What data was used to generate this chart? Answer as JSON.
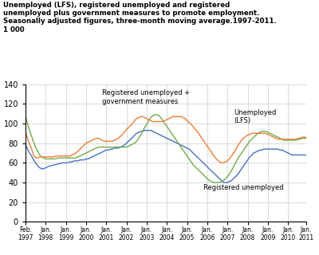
{
  "title_line1": "Unemployed (LFS), registered unemployed and registered",
  "title_line2": "unemployed plus government measures to promote employment.",
  "title_line3": "Seasonally adjusted figures, three-month moving average.1997-2011.",
  "title_line4": "1 000",
  "ylim": [
    0,
    140
  ],
  "yticks": [
    0,
    20,
    40,
    60,
    80,
    100,
    120,
    140
  ],
  "xtick_labels_top": [
    "Feb.",
    "Jan.",
    "Jan.",
    "Jan.",
    "Jan.",
    "Jan.",
    "Jan.",
    "Jan.",
    "Jan.",
    "Jan.",
    "Jan.",
    "Jan.",
    "Jan.",
    "Jan.",
    "Jan."
  ],
  "xtick_labels_bot": [
    "1997",
    "1998",
    "1999",
    "2000",
    "2001",
    "2002",
    "2003",
    "2004",
    "2005",
    "2006",
    "2007",
    "2008",
    "2009",
    "2010",
    "2011"
  ],
  "line_lfs_color": "#4472c4",
  "line_reg_color": "#70ad47",
  "line_gov_color": "#ed7d31",
  "label_lfs": "Unemployed\n(LFS)",
  "label_reg": "Registered unemployed",
  "label_gov": "Registered unemployed +\ngovernment measures",
  "lfs": [
    79,
    74,
    70,
    67,
    63,
    60,
    57,
    55,
    54,
    54,
    55,
    56,
    57,
    57,
    58,
    58,
    59,
    59,
    60,
    60,
    60,
    60,
    61,
    61,
    62,
    62,
    62,
    63,
    63,
    63,
    64,
    64,
    65,
    66,
    67,
    68,
    69,
    70,
    71,
    72,
    73,
    73,
    74,
    74,
    75,
    75,
    75,
    76,
    77,
    78,
    80,
    82,
    84,
    86,
    88,
    90,
    91,
    92,
    92,
    93,
    93,
    93,
    93,
    92,
    91,
    90,
    89,
    88,
    87,
    86,
    85,
    84,
    83,
    82,
    81,
    80,
    79,
    78,
    77,
    76,
    75,
    74,
    72,
    70,
    68,
    66,
    64,
    62,
    60,
    58,
    56,
    54,
    52,
    50,
    48,
    46,
    44,
    42,
    40,
    40,
    40,
    41,
    42,
    44,
    46,
    48,
    51,
    54,
    57,
    60,
    63,
    66,
    68,
    70,
    71,
    72,
    73,
    73,
    74,
    74,
    74,
    74,
    74,
    74,
    74,
    74,
    73,
    73,
    72,
    71,
    70,
    69,
    68,
    68,
    68,
    68,
    68,
    68,
    68,
    68
  ],
  "reg": [
    107,
    100,
    93,
    87,
    81,
    76,
    72,
    68,
    66,
    65,
    64,
    64,
    64,
    64,
    64,
    64,
    65,
    65,
    65,
    65,
    65,
    65,
    65,
    65,
    65,
    65,
    66,
    67,
    68,
    69,
    70,
    71,
    72,
    73,
    74,
    75,
    76,
    76,
    76,
    76,
    76,
    76,
    76,
    76,
    76,
    76,
    76,
    76,
    76,
    76,
    76,
    77,
    78,
    79,
    80,
    82,
    85,
    88,
    92,
    96,
    99,
    103,
    106,
    108,
    109,
    109,
    108,
    106,
    103,
    100,
    97,
    94,
    91,
    88,
    85,
    82,
    79,
    76,
    73,
    70,
    67,
    64,
    61,
    58,
    56,
    54,
    52,
    50,
    48,
    46,
    44,
    42,
    41,
    40,
    40,
    40,
    40,
    41,
    42,
    44,
    46,
    49,
    52,
    56,
    60,
    64,
    67,
    70,
    73,
    76,
    79,
    82,
    84,
    86,
    88,
    90,
    91,
    92,
    92,
    92,
    91,
    90,
    89,
    88,
    87,
    86,
    85,
    84,
    83,
    83,
    83,
    83,
    83,
    83,
    83,
    84,
    84,
    85,
    85,
    85
  ],
  "gov": [
    91,
    85,
    79,
    74,
    68,
    65,
    65,
    66,
    66,
    66,
    66,
    66,
    66,
    66,
    66,
    67,
    67,
    67,
    67,
    67,
    67,
    67,
    67,
    68,
    69,
    70,
    72,
    74,
    76,
    78,
    80,
    81,
    82,
    83,
    84,
    85,
    85,
    84,
    83,
    82,
    82,
    82,
    82,
    82,
    83,
    84,
    85,
    87,
    89,
    91,
    94,
    96,
    98,
    100,
    103,
    105,
    106,
    107,
    107,
    106,
    105,
    104,
    103,
    102,
    102,
    102,
    102,
    102,
    102,
    103,
    104,
    105,
    106,
    107,
    107,
    107,
    107,
    107,
    106,
    105,
    103,
    101,
    99,
    97,
    94,
    92,
    89,
    86,
    83,
    80,
    77,
    74,
    71,
    68,
    65,
    63,
    61,
    60,
    60,
    61,
    62,
    64,
    67,
    70,
    73,
    77,
    80,
    83,
    85,
    87,
    88,
    89,
    90,
    90,
    90,
    90,
    90,
    90,
    90,
    90,
    89,
    88,
    87,
    86,
    85,
    84,
    84,
    84,
    84,
    84,
    84,
    84,
    84,
    84,
    84,
    85,
    85,
    86,
    86,
    86
  ]
}
